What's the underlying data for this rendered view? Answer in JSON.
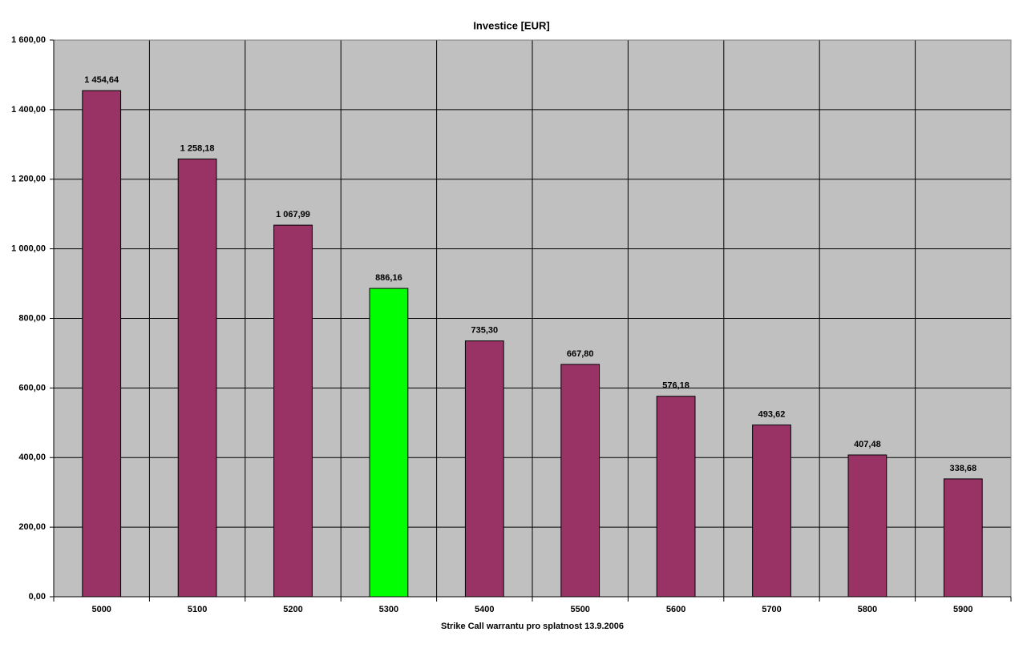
{
  "chart_data": {
    "type": "bar",
    "title": "Investice [EUR]",
    "x_label": "Strike Call warrantu pro splatnost 13.9.2006",
    "categories": [
      "5000",
      "5100",
      "5200",
      "5300",
      "5400",
      "5500",
      "5600",
      "5700",
      "5800",
      "5900"
    ],
    "values": [
      1454.64,
      1258.18,
      1067.99,
      886.16,
      735.3,
      667.8,
      576.18,
      493.62,
      407.48,
      338.68
    ],
    "value_labels": [
      "1 454,64",
      "1 258,18",
      "1 067,99",
      "886,16",
      "735,30",
      "667,80",
      "576,18",
      "493,62",
      "407,48",
      "338,68"
    ],
    "colors": [
      "#993366",
      "#993366",
      "#993366",
      "#00ff00",
      "#993366",
      "#993366",
      "#993366",
      "#993366",
      "#993366",
      "#993366"
    ],
    "ylim": [
      0,
      1600
    ],
    "yticks": [
      {
        "value": 0,
        "label": "0,00"
      },
      {
        "value": 200,
        "label": "200,00"
      },
      {
        "value": 400,
        "label": "400,00"
      },
      {
        "value": 600,
        "label": "600,00"
      },
      {
        "value": 800,
        "label": "800,00"
      },
      {
        "value": 1000,
        "label": "1 000,00"
      },
      {
        "value": 1200,
        "label": "1 200,00"
      },
      {
        "value": 1400,
        "label": "1 400,00"
      },
      {
        "value": 1600,
        "label": "1 600,00"
      }
    ],
    "grid": true,
    "plot_background": "#c0c0c0"
  }
}
